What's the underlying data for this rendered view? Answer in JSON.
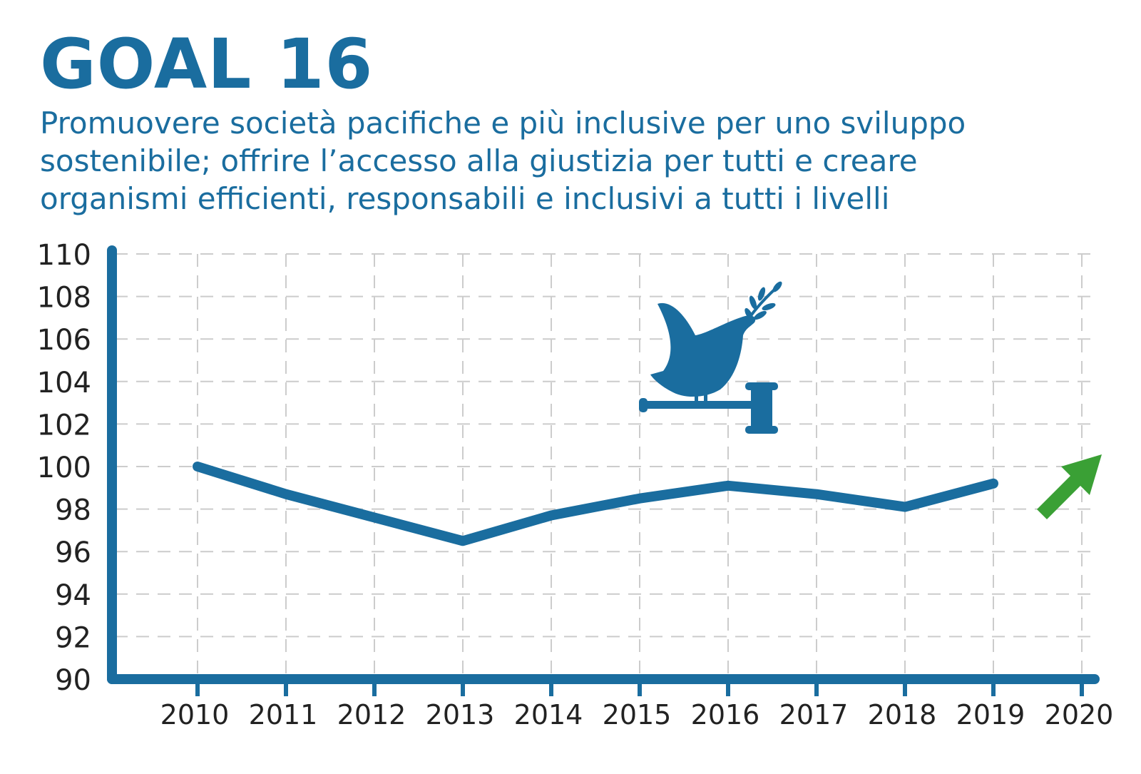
{
  "header": {
    "title": "GOAL 16",
    "subtitle_lines": [
      "Promuovere società pacifiche e più inclusive per uno sviluppo",
      "sostenibile; offrire l’accesso alla giustizia per tutti e creare",
      "organismi efficienti, responsabili e inclusivi a tutti i livelli"
    ]
  },
  "colors": {
    "primary": "#1a6d9f",
    "arrow": "#3aa035",
    "grid": "#cccccc",
    "text": "#222222"
  },
  "icons": {
    "goal": "dove-on-gavel-icon",
    "trend": "trend-up-arrow-icon"
  },
  "chart_data": {
    "type": "line",
    "title": "",
    "xlabel": "",
    "ylabel": "",
    "x": [
      "2010",
      "2011",
      "2012",
      "2013",
      "2014",
      "2015",
      "2016",
      "2017",
      "2018",
      "2019",
      "2020"
    ],
    "ylim": [
      90,
      110
    ],
    "yticks": [
      "90",
      "92",
      "94",
      "96",
      "98",
      "100",
      "102",
      "104",
      "106",
      "108",
      "110"
    ],
    "grid": true,
    "series": [
      {
        "values": [
          100.0,
          98.7,
          97.6,
          96.5,
          97.7,
          98.5,
          99.1,
          98.7,
          98.1,
          99.2,
          null
        ]
      }
    ],
    "trend": "up"
  }
}
